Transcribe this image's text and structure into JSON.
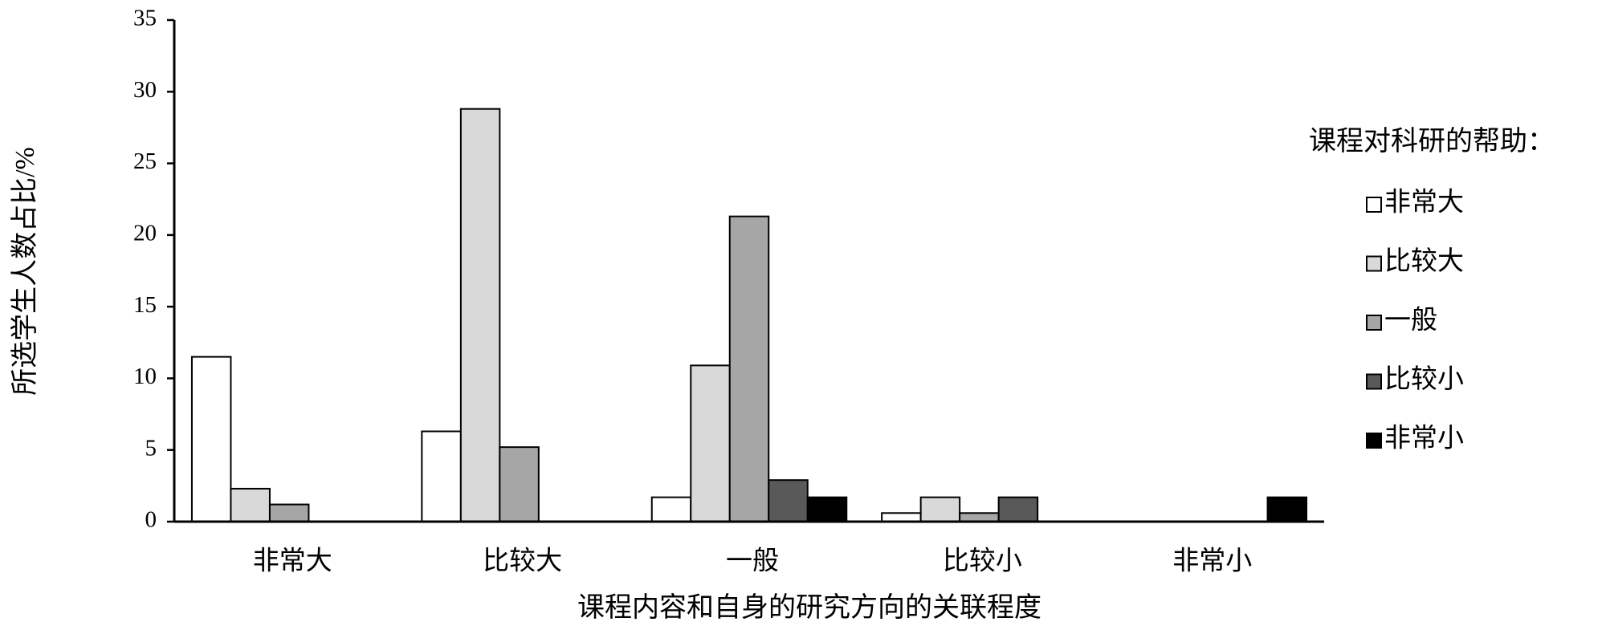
{
  "chart_data": {
    "type": "bar",
    "categories": [
      "非常大",
      "比较大",
      "一般",
      "比较小",
      "非常小"
    ],
    "x_label": "课程内容和自身的研究方向的关联程度",
    "y_label": "所选学生人数占比/%",
    "legend_title": "课程对科研的帮助：",
    "series": [
      {
        "name": "非常大",
        "color": "#ffffff",
        "values": [
          11.5,
          6.3,
          1.7,
          0.6,
          0
        ]
      },
      {
        "name": "比较大",
        "color": "#d9d9d9",
        "values": [
          2.3,
          28.8,
          10.9,
          1.7,
          0
        ]
      },
      {
        "name": "一般",
        "color": "#a6a6a6",
        "values": [
          1.2,
          5.2,
          21.3,
          0.6,
          0
        ]
      },
      {
        "name": "比较小",
        "color": "#595959",
        "values": [
          0,
          0,
          2.9,
          1.7,
          0
        ]
      },
      {
        "name": "非常小",
        "color": "#000000",
        "values": [
          0,
          0,
          1.7,
          0,
          1.7
        ]
      }
    ],
    "ylim": [
      0,
      35
    ],
    "yticks": [
      0,
      5,
      10,
      15,
      20,
      25,
      30,
      35
    ],
    "legend": "right"
  }
}
